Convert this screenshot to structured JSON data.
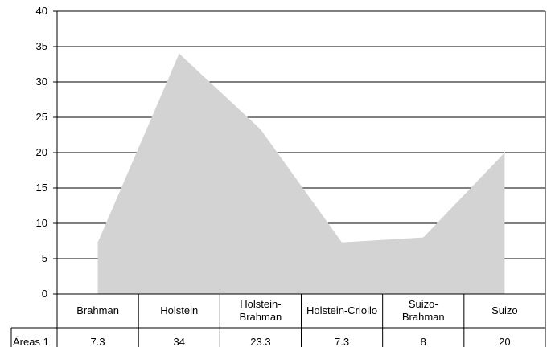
{
  "chart_data": {
    "type": "area",
    "title": "",
    "xlabel": "",
    "ylabel": "",
    "ylim": [
      0,
      40
    ],
    "yticks": [
      0,
      5,
      10,
      15,
      20,
      25,
      30,
      35,
      40
    ],
    "grid": true,
    "categories": [
      [
        "Brahman"
      ],
      [
        "Holstein"
      ],
      [
        "Holstein-",
        "Brahman"
      ],
      [
        "Holstein-Criollo"
      ],
      [
        "Suizo-",
        "Brahman"
      ],
      [
        "Suizo"
      ]
    ],
    "series": [
      {
        "name": "Áreas 1",
        "values": [
          7.3,
          34,
          23.3,
          7.3,
          8,
          20
        ],
        "value_labels": [
          "7.3",
          "34",
          "23.3",
          "7.3",
          "8",
          "20"
        ],
        "color": "#d3d3d3"
      }
    ],
    "data_table": true
  }
}
